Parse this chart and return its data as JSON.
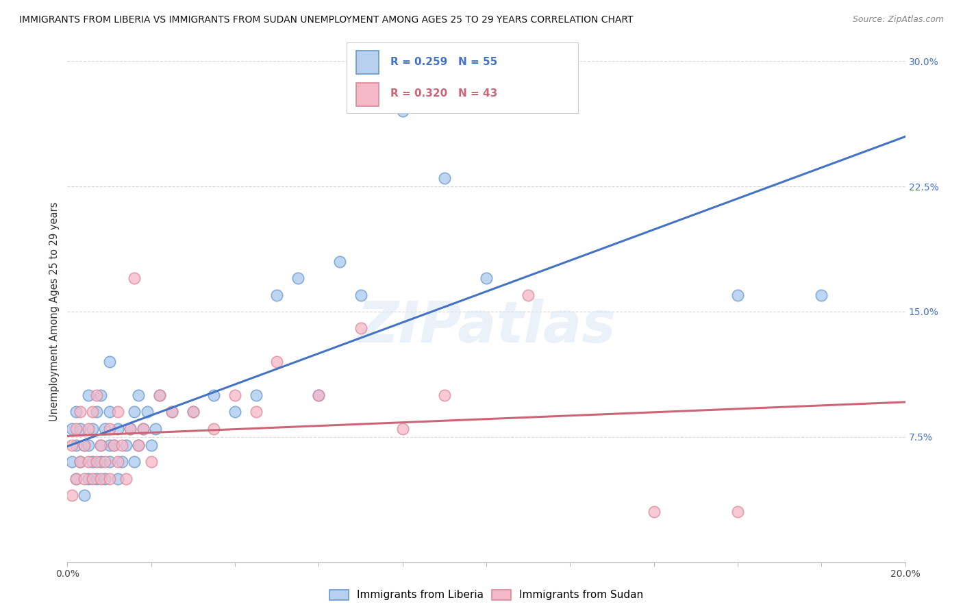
{
  "title": "IMMIGRANTS FROM LIBERIA VS IMMIGRANTS FROM SUDAN UNEMPLOYMENT AMONG AGES 25 TO 29 YEARS CORRELATION CHART",
  "source": "Source: ZipAtlas.com",
  "ylabel": "Unemployment Among Ages 25 to 29 years",
  "xlim": [
    0.0,
    0.2
  ],
  "ylim": [
    0.0,
    0.3
  ],
  "xticks": [
    0.0,
    0.02,
    0.04,
    0.06,
    0.08,
    0.1,
    0.12,
    0.14,
    0.16,
    0.18,
    0.2
  ],
  "yticks": [
    0.0,
    0.075,
    0.15,
    0.225,
    0.3
  ],
  "ytick_labels": [
    "",
    "7.5%",
    "15.0%",
    "22.5%",
    "30.0%"
  ],
  "xtick_labels": [
    "0.0%",
    "",
    "",
    "",
    "",
    "",
    "",
    "",
    "",
    "",
    "20.0%"
  ],
  "series": [
    {
      "name": "Immigrants from Liberia",
      "marker_facecolor": "#aac9ee",
      "marker_edgecolor": "#6699cc",
      "R": 0.259,
      "N": 55,
      "trend_color": "#4472c4",
      "legend_facecolor": "#b8d0ed",
      "legend_edgecolor": "#6699cc",
      "x": [
        0.001,
        0.001,
        0.002,
        0.002,
        0.002,
        0.003,
        0.003,
        0.004,
        0.004,
        0.005,
        0.005,
        0.005,
        0.006,
        0.006,
        0.007,
        0.007,
        0.008,
        0.008,
        0.008,
        0.009,
        0.009,
        0.01,
        0.01,
        0.01,
        0.01,
        0.011,
        0.012,
        0.012,
        0.013,
        0.014,
        0.015,
        0.016,
        0.016,
        0.017,
        0.017,
        0.018,
        0.019,
        0.02,
        0.021,
        0.022,
        0.025,
        0.03,
        0.035,
        0.04,
        0.045,
        0.05,
        0.055,
        0.06,
        0.065,
        0.07,
        0.08,
        0.09,
        0.1,
        0.16,
        0.18
      ],
      "y": [
        0.06,
        0.08,
        0.05,
        0.07,
        0.09,
        0.06,
        0.08,
        0.04,
        0.07,
        0.05,
        0.07,
        0.1,
        0.06,
        0.08,
        0.05,
        0.09,
        0.06,
        0.07,
        0.1,
        0.05,
        0.08,
        0.06,
        0.07,
        0.09,
        0.12,
        0.07,
        0.05,
        0.08,
        0.06,
        0.07,
        0.08,
        0.06,
        0.09,
        0.07,
        0.1,
        0.08,
        0.09,
        0.07,
        0.08,
        0.1,
        0.09,
        0.09,
        0.1,
        0.09,
        0.1,
        0.16,
        0.17,
        0.1,
        0.18,
        0.16,
        0.27,
        0.23,
        0.17,
        0.16,
        0.16
      ]
    },
    {
      "name": "Immigrants from Sudan",
      "marker_facecolor": "#f4b8c8",
      "marker_edgecolor": "#dd8899",
      "R": 0.32,
      "N": 43,
      "trend_color": "#cc6677",
      "legend_facecolor": "#f4b8c8",
      "legend_edgecolor": "#dd8899",
      "x": [
        0.001,
        0.001,
        0.002,
        0.002,
        0.003,
        0.003,
        0.004,
        0.004,
        0.005,
        0.005,
        0.006,
        0.006,
        0.007,
        0.007,
        0.008,
        0.008,
        0.009,
        0.01,
        0.01,
        0.011,
        0.012,
        0.012,
        0.013,
        0.014,
        0.015,
        0.016,
        0.017,
        0.018,
        0.02,
        0.022,
        0.025,
        0.03,
        0.035,
        0.04,
        0.045,
        0.05,
        0.06,
        0.07,
        0.08,
        0.09,
        0.11,
        0.14,
        0.16
      ],
      "y": [
        0.04,
        0.07,
        0.05,
        0.08,
        0.06,
        0.09,
        0.05,
        0.07,
        0.06,
        0.08,
        0.05,
        0.09,
        0.06,
        0.1,
        0.05,
        0.07,
        0.06,
        0.05,
        0.08,
        0.07,
        0.06,
        0.09,
        0.07,
        0.05,
        0.08,
        0.17,
        0.07,
        0.08,
        0.06,
        0.1,
        0.09,
        0.09,
        0.08,
        0.1,
        0.09,
        0.12,
        0.1,
        0.14,
        0.08,
        0.1,
        0.16,
        0.03,
        0.03
      ]
    }
  ],
  "watermark_text": "ZIPatlas",
  "background_color": "#ffffff",
  "grid_color": "#cccccc"
}
